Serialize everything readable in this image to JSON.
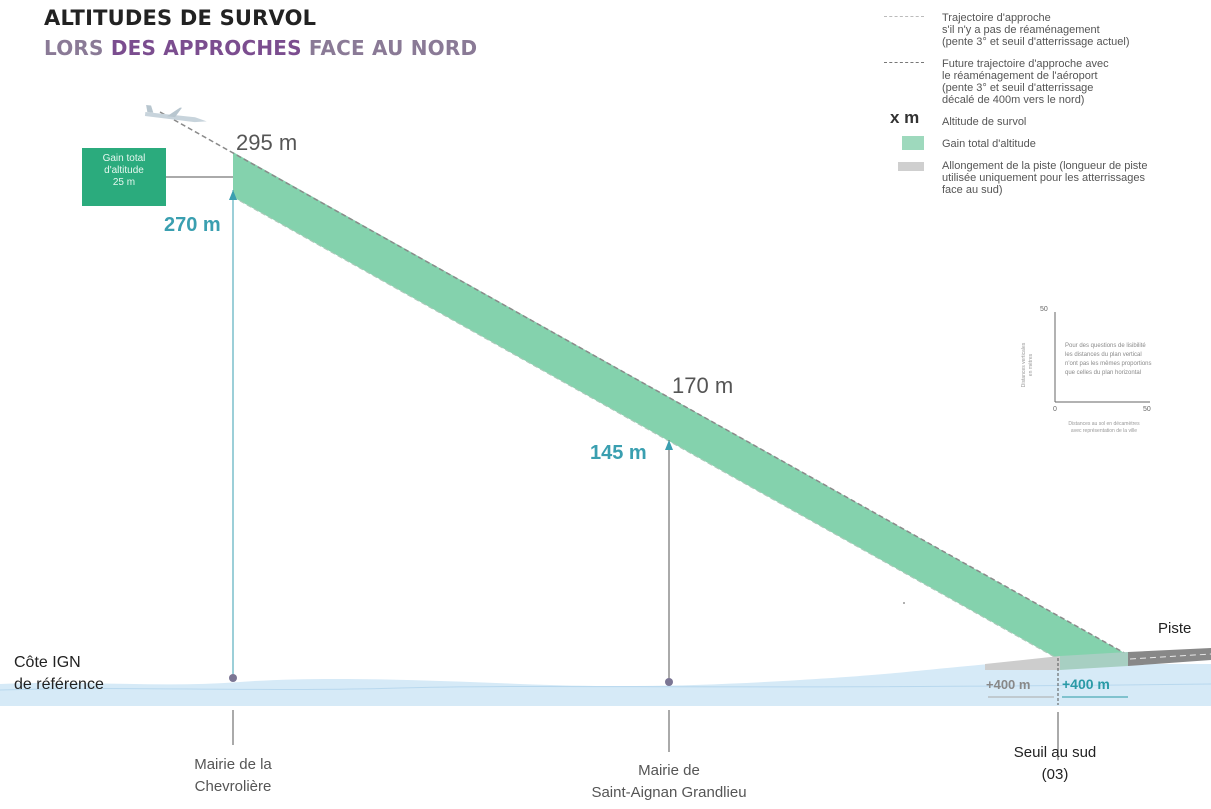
{
  "title": "ALTITUDES DE SURVOL",
  "subtitle": {
    "part1": "LORS ",
    "accent": "DES APPROCHES",
    "part2": " FACE AU NORD"
  },
  "altitudes": {
    "future_1": "295 m",
    "current_1": "270 m",
    "future_2": "170 m",
    "current_2": "145 m"
  },
  "gain_box": {
    "lines": [
      "Gain total",
      "d'altitude",
      "25 m"
    ]
  },
  "reference_label": [
    "Côte IGN",
    "de référence"
  ],
  "locations": {
    "mairie_chevroliere": [
      "Mairie de la",
      "Chevrolière"
    ],
    "mairie_saint_aignan": [
      "Mairie de",
      "Saint-Aignan Grandlieu"
    ],
    "seuil_sud": [
      "Seuil au sud",
      "(03)"
    ]
  },
  "runway": {
    "label": "Piste",
    "extension_gray": "+400 m",
    "extension_blue": "+400 m"
  },
  "legend": [
    {
      "symbol": "dash-light",
      "lines": [
        "Trajectoire d'approche",
        "s'il n'y a pas de réaménagement",
        "(pente 3° et seuil d'atterrissage actuel)"
      ]
    },
    {
      "symbol": "dash-dark",
      "lines": [
        "Future trajectoire d'approche avec",
        "le réaménagement de l'aéroport",
        "(pente 3° et seuil d'atterrissage",
        "décalé de 400m vers le nord)"
      ]
    },
    {
      "symbol": "x m",
      "lines": [
        "Altitude de survol"
      ]
    },
    {
      "symbol": "green-box",
      "lines": [
        "Gain total d'altitude"
      ]
    },
    {
      "symbol": "gray-box",
      "lines": [
        "Allongement de la piste (longueur de piste",
        "utilisée uniquement pour les atterrissages",
        "face au sud)"
      ]
    }
  ],
  "scale_inset": {
    "y_max": "50",
    "x_min": "0",
    "x_max": "50",
    "note": [
      "Pour des questions de lisibilité",
      "les distances du plan vertical",
      "n'ont pas les mêmes proportions",
      "que celles du plan horizontal"
    ],
    "y_label": [
      "Distances verticales",
      "en mètres"
    ],
    "x_label": [
      "Distances au sol en décamètres",
      "avec représentation de la ville"
    ]
  },
  "colors": {
    "gain_band": "#7dcfa9",
    "gain_box": "#2bab7d",
    "altitude_blue": "#3a9fb0",
    "subtitle_accent": "#7b4d8f",
    "ground": "#cfe6f5"
  },
  "icons": {
    "aircraft": "airplane-icon"
  }
}
